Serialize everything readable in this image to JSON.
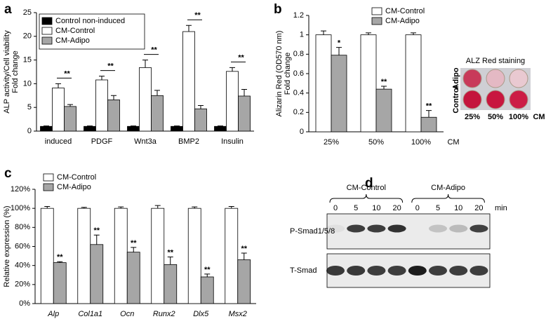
{
  "chart_data": [
    {
      "type": "bar",
      "panel": "a",
      "ylabel": [
        "ALP activity/Cell viability",
        "Fold change"
      ],
      "categories": [
        "induced",
        "PDGF",
        "Wnt3a",
        "BMP2",
        "Insulin"
      ],
      "series": [
        {
          "name": "Control non-induced",
          "color": "#000000",
          "values": [
            1,
            1,
            1,
            1,
            1
          ],
          "errors": [
            0.1,
            0.1,
            0.1,
            0.1,
            0.1
          ]
        },
        {
          "name": "CM-Control",
          "color": "#ffffff",
          "values": [
            9.1,
            10.8,
            13.4,
            21,
            12.6
          ],
          "errors": [
            0.9,
            0.8,
            1.6,
            1.3,
            0.8
          ]
        },
        {
          "name": "CM-Adipo",
          "color": "#a6a6a6",
          "values": [
            5.2,
            6.6,
            7.5,
            4.7,
            7.4
          ],
          "errors": [
            0.4,
            0.9,
            1.1,
            0.7,
            1.4
          ]
        }
      ],
      "significance": [
        "**",
        "**",
        "**",
        "**",
        "**"
      ],
      "significance_bracket": true,
      "ylim": [
        0,
        25
      ],
      "yticks": [
        0,
        5,
        10,
        15,
        20,
        25
      ],
      "legend": "upper left",
      "legend_frame": true
    },
    {
      "type": "bar",
      "panel": "b",
      "ylabel": [
        "Alizarin Red (OD570 nm)",
        "Fold change"
      ],
      "xlabel": "CM",
      "categories": [
        "25%",
        "50%",
        "100%"
      ],
      "series": [
        {
          "name": "CM-Control",
          "color": "#ffffff",
          "values": [
            1,
            1,
            1
          ],
          "errors": [
            0.04,
            0.02,
            0.02
          ]
        },
        {
          "name": "CM-Adipo",
          "color": "#a6a6a6",
          "values": [
            0.79,
            0.44,
            0.15
          ],
          "errors": [
            0.08,
            0.03,
            0.07
          ]
        }
      ],
      "significance": [
        "*",
        "**",
        "**"
      ],
      "significance_bracket": false,
      "ylim": [
        0,
        1.2
      ],
      "yticks": [
        0,
        0.2,
        0.4,
        0.6,
        0.8,
        1,
        1.2
      ],
      "legend": "upper right",
      "legend_frame": false,
      "inset": {
        "title": "ALZ Red staining",
        "rows": [
          "Adipo",
          "Control"
        ],
        "columns": [
          "25%",
          "50%",
          "100%"
        ],
        "unit": "CM"
      }
    },
    {
      "type": "bar",
      "panel": "c",
      "ylabel": [
        "Relative expression (%)"
      ],
      "category_style": "italic",
      "categories": [
        "Alp",
        "Col1a1",
        "Ocn",
        "Runx2",
        "Dlx5",
        "Msx2"
      ],
      "series": [
        {
          "name": "CM-Control",
          "color": "#ffffff",
          "values": [
            100,
            100,
            100,
            100,
            100,
            100
          ],
          "errors": [
            2,
            1,
            1.5,
            3,
            1.5,
            2
          ]
        },
        {
          "name": "CM-Adipo",
          "color": "#a6a6a6",
          "values": [
            43,
            62,
            54,
            41,
            28,
            46
          ],
          "errors": [
            1,
            10,
            5,
            8,
            3,
            7
          ]
        }
      ],
      "significance": [
        "**",
        "**",
        "**",
        "**",
        "**",
        "**"
      ],
      "significance_bracket": false,
      "ylim": [
        0,
        120
      ],
      "yticks": [
        {
          "value": 0,
          "label": "0%"
        },
        {
          "value": 20,
          "label": "20%"
        },
        {
          "value": 40,
          "label": "40%"
        },
        {
          "value": 60,
          "label": "60%"
        },
        {
          "value": 80,
          "label": "80%"
        },
        {
          "value": 100,
          "label": "100%"
        },
        {
          "value": 120,
          "label": "120%"
        }
      ],
      "legend": "upper left",
      "legend_frame": false
    }
  ],
  "blot": {
    "panel": "d",
    "groups": [
      "CM-Control",
      "CM-Adipo"
    ],
    "times": [
      "0",
      "5",
      "10",
      "20",
      "0",
      "5",
      "10",
      "20"
    ],
    "time_unit": "min",
    "rows": [
      "P-Smad1/5/8",
      "T-Smad"
    ]
  }
}
